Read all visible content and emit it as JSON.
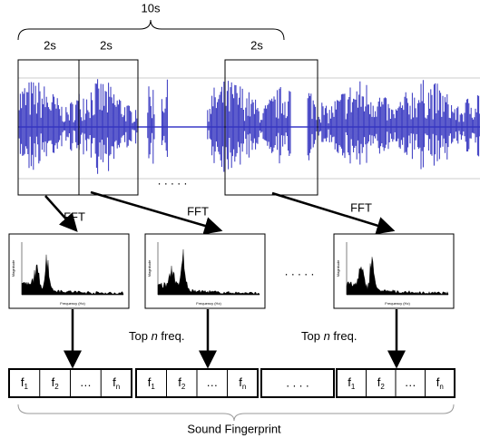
{
  "header": {
    "duration": "10s"
  },
  "windows": [
    {
      "label": "2s"
    },
    {
      "label": "2s"
    },
    {
      "label": "2s"
    }
  ],
  "window_ellipsis": ". . . . .",
  "fft_labels": [
    "FFT",
    "FFT",
    "FFT"
  ],
  "spectrum": {
    "y_axis": "Magnitude",
    "x_axis": "Frequency (Hz)"
  },
  "spectrum_ellipsis": ". . . . .",
  "top_labels": [
    {
      "before": "Top ",
      "var": "n",
      "after": " freq."
    },
    {
      "before": "Top ",
      "var": "n",
      "after": " freq."
    }
  ],
  "fingerprints": [
    {
      "cells": [
        {
          "base": "f",
          "sub": "1"
        },
        {
          "base": "f",
          "sub": "2"
        },
        {
          "base": "…",
          "sub": ""
        },
        {
          "base": "f",
          "sub": "n"
        }
      ]
    },
    {
      "cells": [
        {
          "base": "f",
          "sub": "1"
        },
        {
          "base": "f",
          "sub": "2"
        },
        {
          "base": "…",
          "sub": ""
        },
        {
          "base": "f",
          "sub": "n"
        }
      ]
    },
    {
      "cells": [
        {
          "base": "f",
          "sub": "1"
        },
        {
          "base": "f",
          "sub": "2"
        },
        {
          "base": "…",
          "sub": ""
        },
        {
          "base": "f",
          "sub": "n"
        }
      ]
    }
  ],
  "fingerprint_ellipsis": ". . . .",
  "footer": "Sound Fingerprint"
}
